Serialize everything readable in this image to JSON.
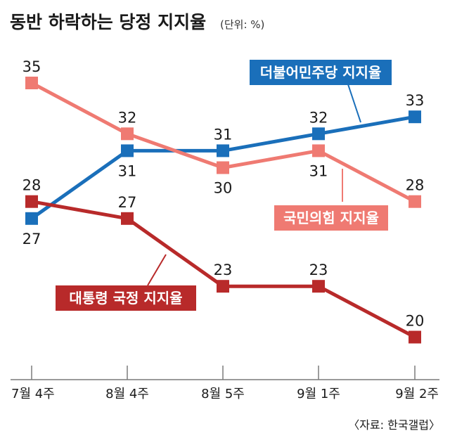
{
  "chart_data": {
    "type": "line",
    "title": "동반 하락하는 당정 지지율",
    "unit": "(단위: %)",
    "source": "〈자료: 한국갤럽〉",
    "categories": [
      "7월 4주",
      "8월 4주",
      "8월 5주",
      "9월 1주",
      "9월 2주"
    ],
    "ylim": [
      15,
      40
    ],
    "grid": false,
    "series": [
      {
        "name": "더불어민주당 지지율",
        "color": "#1a6fba",
        "values": [
          27,
          31,
          31,
          32,
          33
        ]
      },
      {
        "name": "국민의힘 지지율",
        "color": "#ef7a72",
        "values": [
          35,
          32,
          30,
          31,
          28
        ]
      },
      {
        "name": "대통령 국정 지지율",
        "color": "#b82a2a",
        "values": [
          28,
          27,
          23,
          23,
          20
        ]
      }
    ]
  }
}
